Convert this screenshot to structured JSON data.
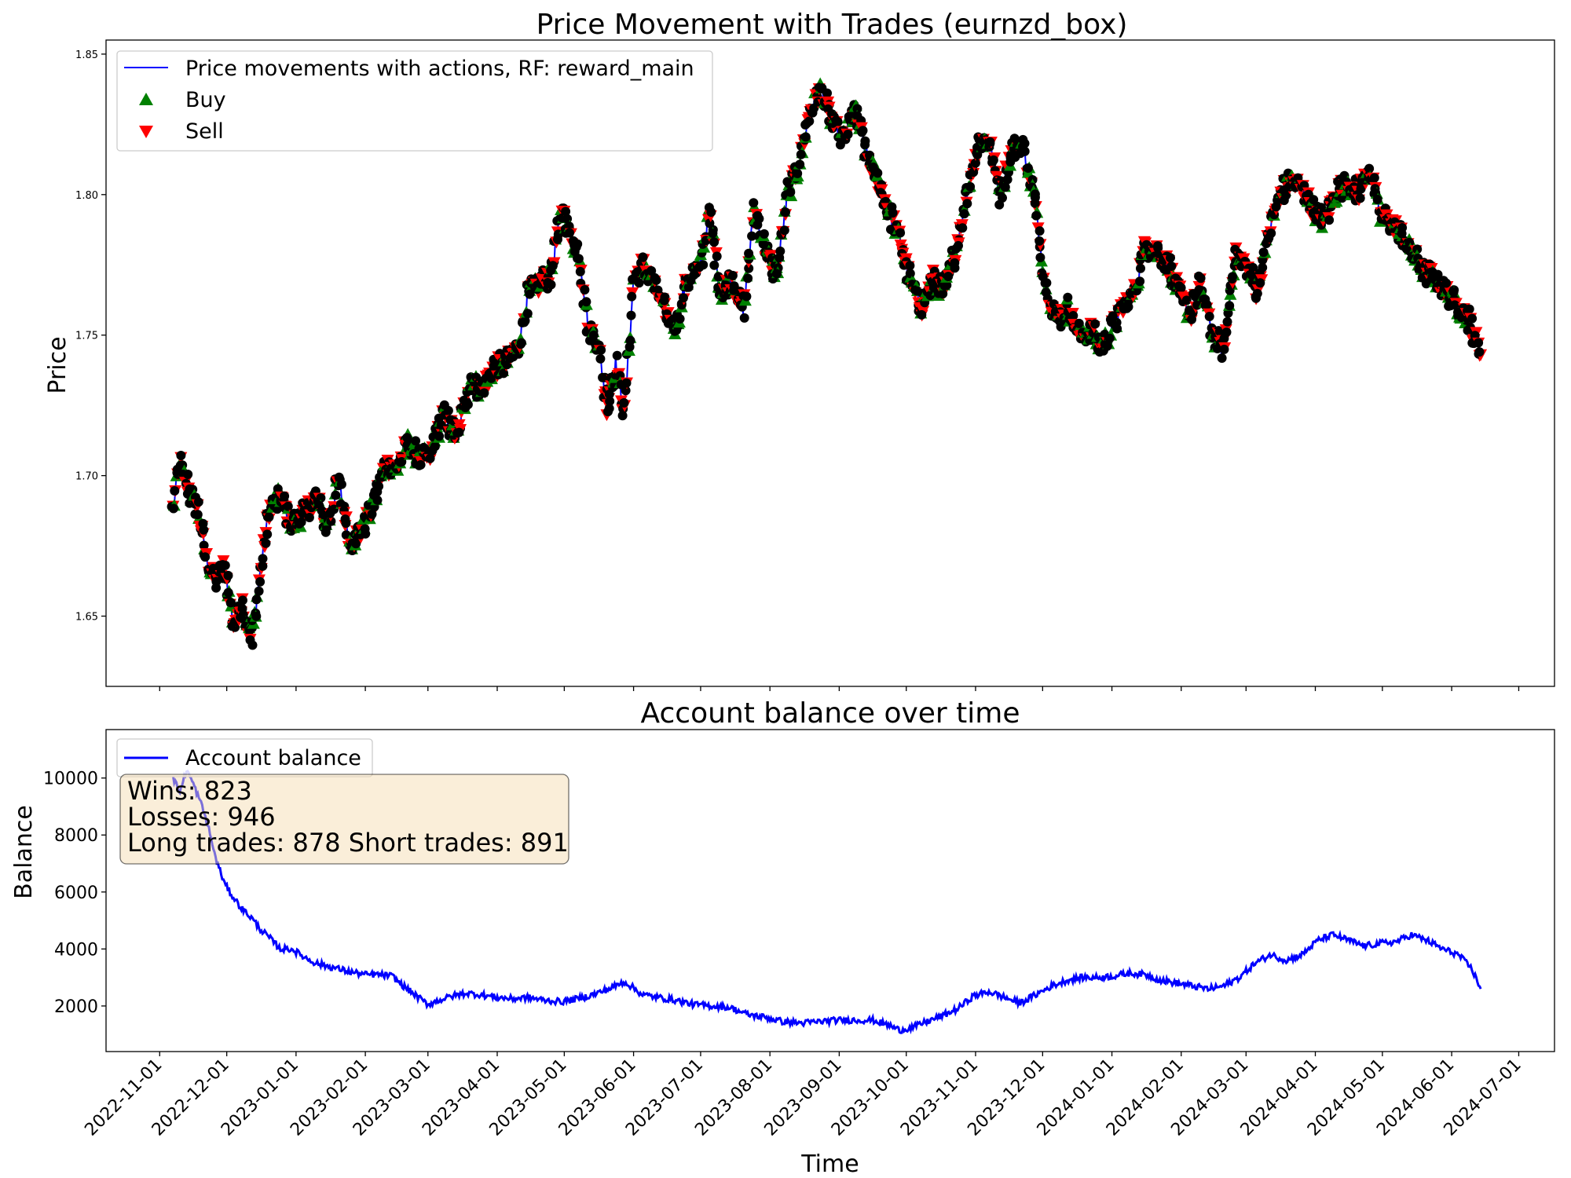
{
  "chart_data": [
    {
      "type": "line",
      "title": "Price Movement with Trades (eurnzd_box)",
      "xlabel": "",
      "ylabel": "Price",
      "ylim": [
        1.625,
        1.855
      ],
      "yticks": [
        1.65,
        1.7,
        1.75,
        1.8,
        1.85
      ],
      "ytick_labels": [
        "1.65",
        "1.70",
        "1.75",
        "1.80",
        "1.85"
      ],
      "grid": false,
      "legend_position": "top-left",
      "legend": [
        {
          "label": "Price movements with actions, RF: reward_main",
          "marker": "line",
          "color": "#0000ff"
        },
        {
          "label": "Buy",
          "marker": "triangle-up",
          "color": "#008000"
        },
        {
          "label": "Sell",
          "marker": "triangle-down",
          "color": "#ff0000"
        }
      ],
      "series": [
        {
          "name": "Price movements with actions, RF: reward_main",
          "color": "#0000ff",
          "x": [
            "2022-11-07",
            "2022-11-10",
            "2022-11-14",
            "2022-11-18",
            "2022-11-22",
            "2022-11-26",
            "2022-11-30",
            "2022-12-04",
            "2022-12-08",
            "2022-12-12",
            "2022-12-15",
            "2022-12-20",
            "2022-12-25",
            "2022-12-30",
            "2023-01-05",
            "2023-01-10",
            "2023-01-15",
            "2023-01-20",
            "2023-01-25",
            "2023-01-30",
            "2023-02-05",
            "2023-02-10",
            "2023-02-15",
            "2023-02-20",
            "2023-02-25",
            "2023-03-02",
            "2023-03-08",
            "2023-03-14",
            "2023-03-20",
            "2023-03-25",
            "2023-03-30",
            "2023-04-05",
            "2023-04-10",
            "2023-04-15",
            "2023-04-20",
            "2023-04-25",
            "2023-04-30",
            "2023-05-04",
            "2023-05-08",
            "2023-05-12",
            "2023-05-16",
            "2023-05-20",
            "2023-05-24",
            "2023-05-28",
            "2023-06-01",
            "2023-06-05",
            "2023-06-10",
            "2023-06-15",
            "2023-06-20",
            "2023-06-25",
            "2023-06-30",
            "2023-07-05",
            "2023-07-10",
            "2023-07-15",
            "2023-07-20",
            "2023-07-25",
            "2023-07-30",
            "2023-08-04",
            "2023-08-09",
            "2023-08-14",
            "2023-08-19",
            "2023-08-24",
            "2023-08-29",
            "2023-09-03",
            "2023-09-08",
            "2023-09-13",
            "2023-09-18",
            "2023-09-23",
            "2023-09-28",
            "2023-10-03",
            "2023-10-08",
            "2023-10-13",
            "2023-10-18",
            "2023-10-23",
            "2023-10-28",
            "2023-11-02",
            "2023-11-07",
            "2023-11-12",
            "2023-11-17",
            "2023-11-22",
            "2023-11-27",
            "2023-12-02",
            "2023-12-07",
            "2023-12-12",
            "2023-12-17",
            "2023-12-22",
            "2023-12-27",
            "2024-01-01",
            "2024-01-06",
            "2024-01-11",
            "2024-01-16",
            "2024-01-21",
            "2024-01-26",
            "2024-01-31",
            "2024-02-05",
            "2024-02-10",
            "2024-02-15",
            "2024-02-20",
            "2024-02-25",
            "2024-03-01",
            "2024-03-06",
            "2024-03-11",
            "2024-03-16",
            "2024-03-21",
            "2024-03-26",
            "2024-03-31",
            "2024-04-05",
            "2024-04-10",
            "2024-04-15",
            "2024-04-20",
            "2024-04-25",
            "2024-04-30",
            "2024-05-05",
            "2024-05-10",
            "2024-05-15",
            "2024-05-20",
            "2024-05-25",
            "2024-05-30",
            "2024-06-04",
            "2024-06-09",
            "2024-06-14"
          ],
          "values": [
            1.688,
            1.705,
            1.695,
            1.688,
            1.67,
            1.662,
            1.668,
            1.647,
            1.655,
            1.64,
            1.66,
            1.688,
            1.693,
            1.682,
            1.687,
            1.692,
            1.682,
            1.698,
            1.676,
            1.68,
            1.69,
            1.704,
            1.702,
            1.712,
            1.706,
            1.707,
            1.722,
            1.713,
            1.735,
            1.73,
            1.738,
            1.74,
            1.745,
            1.765,
            1.768,
            1.772,
            1.795,
            1.785,
            1.778,
            1.752,
            1.748,
            1.725,
            1.74,
            1.722,
            1.77,
            1.775,
            1.768,
            1.758,
            1.753,
            1.77,
            1.773,
            1.793,
            1.765,
            1.77,
            1.758,
            1.795,
            1.78,
            1.772,
            1.8,
            1.81,
            1.83,
            1.838,
            1.825,
            1.82,
            1.83,
            1.815,
            1.805,
            1.795,
            1.785,
            1.768,
            1.76,
            1.77,
            1.765,
            1.78,
            1.8,
            1.818,
            1.82,
            1.8,
            1.815,
            1.818,
            1.8,
            1.77,
            1.755,
            1.76,
            1.75,
            1.752,
            1.746,
            1.752,
            1.76,
            1.765,
            1.782,
            1.78,
            1.775,
            1.765,
            1.757,
            1.768,
            1.75,
            1.745,
            1.778,
            1.775,
            1.765,
            1.785,
            1.8,
            1.805,
            1.802,
            1.795,
            1.79,
            1.8,
            1.805,
            1.8,
            1.81,
            1.792,
            1.79,
            1.785,
            1.778,
            1.772,
            1.77,
            1.765,
            1.76,
            1.755,
            1.743
          ]
        }
      ]
    },
    {
      "type": "line",
      "title": "Account balance over time",
      "xlabel": "Time",
      "ylabel": "Balance",
      "ylim": [
        400,
        11700
      ],
      "yticks": [
        2000,
        4000,
        6000,
        8000,
        10000
      ],
      "ytick_labels": [
        "2000",
        "4000",
        "6000",
        "8000",
        "10000"
      ],
      "xtick_labels": [
        "2022-11-01",
        "2022-12-01",
        "2023-01-01",
        "2023-02-01",
        "2023-03-01",
        "2023-04-01",
        "2023-05-01",
        "2023-06-01",
        "2023-07-01",
        "2023-08-01",
        "2023-09-01",
        "2023-10-01",
        "2023-11-01",
        "2023-12-01",
        "2024-01-01",
        "2024-02-01",
        "2024-03-01",
        "2024-04-01",
        "2024-05-01",
        "2024-06-01",
        "2024-07-01"
      ],
      "grid": false,
      "legend_position": "top-left",
      "legend": [
        {
          "label": "Account balance",
          "marker": "line",
          "color": "#0000ff"
        }
      ],
      "annotations": {
        "wins": "Wins: 823",
        "losses": "Losses: 946",
        "trades": "Long trades: 878 Short trades: 891"
      },
      "series": [
        {
          "name": "Account balance",
          "color": "#0000ff",
          "x": [
            "2022-11-07",
            "2022-11-10",
            "2022-11-13",
            "2022-11-16",
            "2022-11-20",
            "2022-11-23",
            "2022-11-26",
            "2022-11-30",
            "2022-12-04",
            "2022-12-08",
            "2022-12-12",
            "2022-12-16",
            "2022-12-20",
            "2022-12-25",
            "2022-12-30",
            "2023-01-05",
            "2023-01-10",
            "2023-01-15",
            "2023-01-20",
            "2023-01-25",
            "2023-02-01",
            "2023-02-07",
            "2023-02-13",
            "2023-02-18",
            "2023-02-23",
            "2023-03-01",
            "2023-03-06",
            "2023-03-12",
            "2023-03-18",
            "2023-03-24",
            "2023-04-01",
            "2023-04-08",
            "2023-04-15",
            "2023-04-22",
            "2023-04-30",
            "2023-05-07",
            "2023-05-14",
            "2023-05-21",
            "2023-05-28",
            "2023-06-05",
            "2023-06-12",
            "2023-06-20",
            "2023-06-28",
            "2023-07-06",
            "2023-07-14",
            "2023-07-22",
            "2023-07-30",
            "2023-08-07",
            "2023-08-15",
            "2023-08-23",
            "2023-08-31",
            "2023-09-08",
            "2023-09-16",
            "2023-09-24",
            "2023-09-28",
            "2023-10-04",
            "2023-10-10",
            "2023-10-17",
            "2023-10-24",
            "2023-10-31",
            "2023-11-07",
            "2023-11-14",
            "2023-11-21",
            "2023-11-28",
            "2023-12-05",
            "2023-12-12",
            "2023-12-19",
            "2023-12-26",
            "2024-01-02",
            "2024-01-09",
            "2024-01-16",
            "2024-01-23",
            "2024-01-30",
            "2024-02-06",
            "2024-02-13",
            "2024-02-20",
            "2024-02-27",
            "2024-03-05",
            "2024-03-12",
            "2024-03-19",
            "2024-03-26",
            "2024-04-02",
            "2024-04-09",
            "2024-04-16",
            "2024-04-23",
            "2024-04-30",
            "2024-05-07",
            "2024-05-14",
            "2024-05-21",
            "2024-05-28",
            "2024-06-04",
            "2024-06-10",
            "2024-06-14"
          ],
          "values": [
            10000,
            9500,
            10300,
            9800,
            9000,
            8200,
            7200,
            6300,
            5800,
            5400,
            5100,
            4700,
            4400,
            4000,
            4000,
            3700,
            3500,
            3400,
            3300,
            3200,
            3100,
            3100,
            3050,
            2700,
            2400,
            2050,
            2200,
            2350,
            2450,
            2400,
            2300,
            2250,
            2300,
            2200,
            2150,
            2250,
            2400,
            2600,
            2850,
            2400,
            2300,
            2200,
            2050,
            2000,
            1950,
            1700,
            1600,
            1450,
            1400,
            1450,
            1500,
            1500,
            1500,
            1300,
            1150,
            1250,
            1450,
            1650,
            1900,
            2350,
            2500,
            2300,
            2100,
            2400,
            2700,
            2900,
            3000,
            3000,
            3050,
            3150,
            3100,
            2900,
            2800,
            2700,
            2600,
            2700,
            3000,
            3500,
            3800,
            3600,
            3800,
            4300,
            4500,
            4300,
            4100,
            4200,
            4250,
            4500,
            4300,
            4000,
            3800,
            3300,
            2600
          ]
        }
      ]
    }
  ]
}
